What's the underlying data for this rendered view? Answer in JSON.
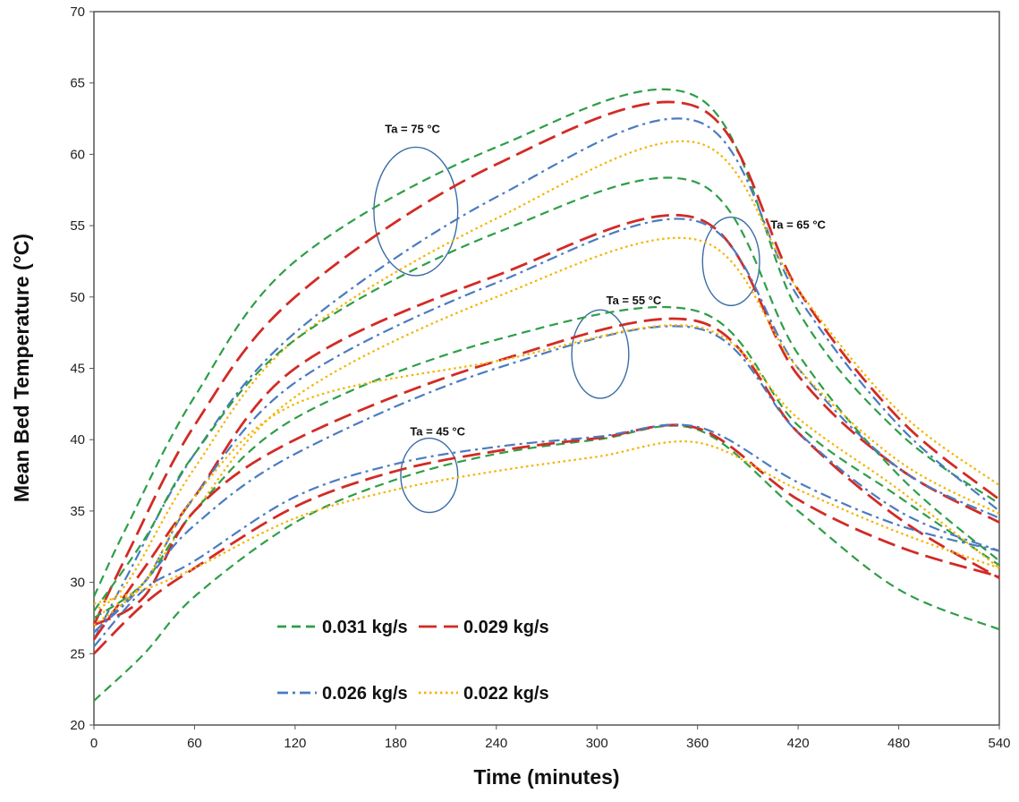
{
  "chart_data": {
    "type": "line",
    "xlabel": "Time (minutes)",
    "ylabel": "Mean Bed Temperature (°C)",
    "xlim": [
      0,
      540
    ],
    "ylim": [
      20,
      70
    ],
    "xticks": [
      0,
      60,
      120,
      180,
      240,
      300,
      360,
      420,
      480,
      540
    ],
    "yticks": [
      20,
      25,
      30,
      35,
      40,
      45,
      50,
      55,
      60,
      65,
      70
    ],
    "grid": false,
    "legend": {
      "placement": "bottom-left",
      "entries": [
        {
          "label": "0.031 kg/s",
          "color": "#2e9e47",
          "dash": "dashed"
        },
        {
          "label": "0.029 kg/s",
          "color": "#d22b25",
          "dash": "long-dashed"
        },
        {
          "label": "0.026 kg/s",
          "color": "#4a7bc1",
          "dash": "dash-dot"
        },
        {
          "label": "0.022 kg/s",
          "color": "#f4b400",
          "dash": "dotted"
        }
      ]
    },
    "annotations": [
      {
        "text": "Ta = 75 °C",
        "x": 190,
        "y": 61.5
      },
      {
        "text": "Ta = 65 °C",
        "x": 420,
        "y": 54.8
      },
      {
        "text": "Ta = 55 °C",
        "x": 322,
        "y": 49.5
      },
      {
        "text": "Ta = 45 °C",
        "x": 205,
        "y": 40.3
      }
    ],
    "circles": [
      {
        "x": 192,
        "y": 56.0,
        "rx": 25,
        "ry": 4.5
      },
      {
        "x": 380,
        "y": 52.5,
        "rx": 17,
        "ry": 3.1
      },
      {
        "x": 302,
        "y": 46.0,
        "rx": 17,
        "ry": 3.1
      },
      {
        "x": 200,
        "y": 37.5,
        "rx": 17,
        "ry": 2.6
      }
    ],
    "series": [
      {
        "group": "75",
        "flow": "0.031 kg/s",
        "x": [
          0,
          20,
          60,
          120,
          240,
          360,
          420,
          480,
          540
        ],
        "y": [
          29.0,
          34.0,
          43.0,
          52.5,
          60.5,
          64.0,
          49.0,
          40.5,
          35.5
        ]
      },
      {
        "group": "75",
        "flow": "0.029 kg/s",
        "x": [
          0,
          20,
          60,
          120,
          240,
          360,
          420,
          480,
          540
        ],
        "y": [
          27.0,
          32.0,
          41.0,
          50.0,
          59.3,
          63.3,
          50.5,
          41.5,
          35.8
        ]
      },
      {
        "group": "75",
        "flow": "0.026 kg/s",
        "x": [
          0,
          20,
          60,
          120,
          240,
          360,
          420,
          480,
          540
        ],
        "y": [
          26.0,
          30.5,
          39.0,
          47.5,
          57.0,
          62.3,
          50.0,
          41.0,
          35.0
        ]
      },
      {
        "group": "75",
        "flow": "0.022 kg/s",
        "x": [
          0,
          20,
          60,
          120,
          240,
          360,
          420,
          480,
          540
        ],
        "y": [
          28.0,
          30.0,
          38.0,
          47.0,
          55.5,
          60.8,
          50.5,
          42.0,
          36.8
        ]
      },
      {
        "group": "65",
        "flow": "0.031 kg/s",
        "x": [
          0,
          30,
          60,
          120,
          240,
          360,
          420,
          480,
          540
        ],
        "y": [
          28.0,
          33.0,
          39.0,
          47.0,
          54.5,
          58.0,
          46.0,
          37.5,
          31.5
        ]
      },
      {
        "group": "65",
        "flow": "0.029 kg/s",
        "x": [
          0,
          30,
          60,
          120,
          240,
          360,
          420,
          480,
          540
        ],
        "y": [
          26.0,
          31.0,
          36.0,
          45.0,
          51.5,
          55.5,
          44.5,
          38.0,
          34.2
        ]
      },
      {
        "group": "65",
        "flow": "0.026 kg/s",
        "x": [
          0,
          30,
          60,
          120,
          240,
          360,
          420,
          480,
          540
        ],
        "y": [
          26.5,
          30.0,
          36.0,
          44.0,
          51.0,
          55.3,
          45.0,
          38.0,
          34.5
        ]
      },
      {
        "group": "65",
        "flow": "0.022 kg/s",
        "x": [
          0,
          30,
          60,
          120,
          240,
          360,
          420,
          480,
          540
        ],
        "y": [
          27.5,
          30.0,
          35.0,
          43.0,
          50.0,
          54.0,
          45.0,
          38.5,
          34.8
        ]
      },
      {
        "group": "55",
        "flow": "0.031 kg/s",
        "x": [
          0,
          30,
          60,
          120,
          240,
          360,
          420,
          480,
          540
        ],
        "y": [
          27.5,
          30.0,
          35.0,
          41.5,
          47.0,
          49.0,
          41.0,
          36.0,
          31.2
        ]
      },
      {
        "group": "55",
        "flow": "0.029 kg/s",
        "x": [
          0,
          30,
          60,
          120,
          240,
          360,
          420,
          480,
          540
        ],
        "y": [
          27.0,
          29.0,
          35.0,
          40.0,
          45.5,
          48.3,
          40.5,
          34.5,
          30.3
        ]
      },
      {
        "group": "55",
        "flow": "0.026 kg/s",
        "x": [
          0,
          30,
          60,
          120,
          240,
          360,
          420,
          480,
          540
        ],
        "y": [
          26.5,
          30.0,
          34.0,
          39.0,
          45.0,
          47.8,
          40.5,
          35.0,
          32.2
        ]
      },
      {
        "group": "55",
        "flow": "0.022 kg/s",
        "x": [
          0,
          30,
          60,
          120,
          240,
          360,
          420,
          480,
          540
        ],
        "y": [
          27.0,
          30.0,
          36.0,
          42.5,
          45.5,
          47.9,
          41.5,
          36.5,
          31.0
        ]
      },
      {
        "group": "45",
        "flow": "0.031 kg/s",
        "x": [
          0,
          30,
          60,
          120,
          180,
          240,
          300,
          360,
          420,
          480,
          540
        ],
        "y": [
          21.7,
          25.0,
          29.0,
          34.2,
          37.2,
          39.0,
          40.0,
          40.7,
          35.0,
          29.5,
          26.7
        ]
      },
      {
        "group": "45",
        "flow": "0.029 kg/s",
        "x": [
          0,
          30,
          60,
          120,
          180,
          240,
          300,
          360,
          420,
          480,
          540
        ],
        "y": [
          25.0,
          28.5,
          31.0,
          35.3,
          37.8,
          39.2,
          40.1,
          40.8,
          35.8,
          32.5,
          30.4
        ]
      },
      {
        "group": "45",
        "flow": "0.026 kg/s",
        "x": [
          0,
          30,
          60,
          120,
          180,
          240,
          300,
          360,
          420,
          480,
          540
        ],
        "y": [
          25.5,
          29.5,
          31.5,
          36.0,
          38.3,
          39.5,
          40.2,
          40.9,
          37.0,
          34.0,
          32.2
        ]
      },
      {
        "group": "45",
        "flow": "0.022 kg/s",
        "x": [
          0,
          30,
          60,
          120,
          180,
          240,
          300,
          360,
          420,
          480,
          540
        ],
        "y": [
          28.5,
          29.5,
          31.0,
          34.5,
          36.5,
          37.8,
          38.8,
          39.8,
          36.5,
          33.5,
          31.0
        ]
      }
    ]
  }
}
